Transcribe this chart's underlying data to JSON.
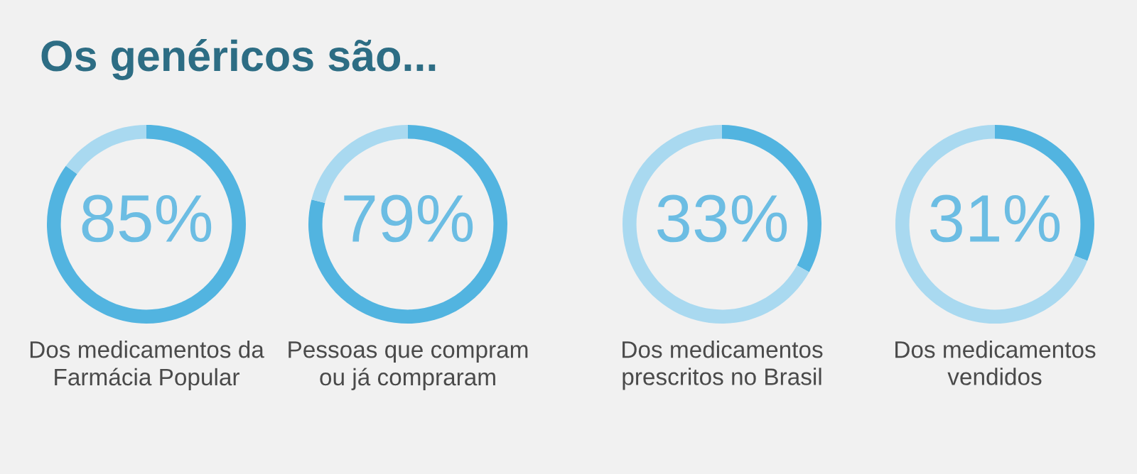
{
  "chart_data": [
    {
      "type": "donut",
      "title": "Os genéricos são...",
      "categories": [
        null,
        null
      ],
      "values": [
        85,
        15
      ],
      "colors": [
        "#52b4e0",
        "#a9d9f0"
      ],
      "value_labels": [
        "85%",
        null
      ],
      "xlabel": "Dos medicamentos da\nFarmácia Popular"
    },
    {
      "type": "donut",
      "categories": [
        null,
        null
      ],
      "values": [
        79,
        21
      ],
      "colors": [
        "#52b4e0",
        "#a9d9f0"
      ],
      "value_labels": [
        "79%",
        null
      ],
      "xlabel": "Pessoas que compram\nou já compraram"
    },
    {
      "type": "donut",
      "categories": [
        null,
        null
      ],
      "values": [
        33,
        67
      ],
      "colors": [
        "#52b4e0",
        "#a9d9f0"
      ],
      "value_labels": [
        "33%",
        null
      ],
      "xlabel": "Dos medicamentos\nprescritos no Brasil"
    },
    {
      "type": "donut",
      "categories": [
        null,
        null
      ],
      "values": [
        31,
        69
      ],
      "colors": [
        "#52b4e0",
        "#a9d9f0"
      ],
      "value_labels": [
        "31%",
        null
      ],
      "xlabel": "Dos medicamentos\nvendidos"
    }
  ]
}
